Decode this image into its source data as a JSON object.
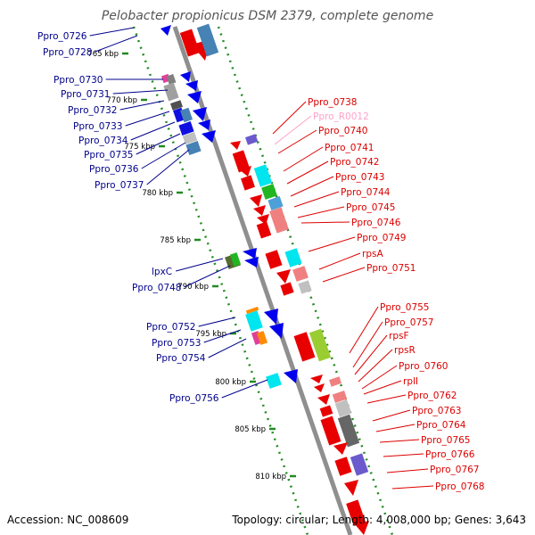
{
  "title": "Pelobacter propionicus DSM 2379, complete genome",
  "footer": {
    "accession": "Accession: NC_008609",
    "summary": "Topology: circular; Length: 4,008,000 bp; Genes: 3,643"
  },
  "colors": {
    "left_label": "#00008b",
    "right_label": "#dd0000",
    "rna_label": "#ff9fc8",
    "backbone": "#909090",
    "scale": "#228b22"
  },
  "ticks": [
    "765 kbp",
    "770 kbp",
    "775 kbp",
    "780 kbp",
    "785 kbp",
    "790 kbp",
    "795 kbp",
    "800 kbp",
    "805 kbp",
    "810 kbp"
  ],
  "left_labels": [
    "Ppro_0726",
    "Ppro_0728",
    "Ppro_0730",
    "Ppro_0731",
    "Ppro_0732",
    "Ppro_0733",
    "Ppro_0734",
    "Ppro_0735",
    "Ppro_0736",
    "Ppro_0737",
    "lpxC",
    "Ppro_0748",
    "Ppro_0752",
    "Ppro_0753",
    "Ppro_0754",
    "Ppro_0756"
  ],
  "right_labels": [
    "Ppro_0738",
    "Ppro_R0012",
    "Ppro_0740",
    "Ppro_0741",
    "Ppro_0742",
    "Ppro_0743",
    "Ppro_0744",
    "Ppro_0745",
    "Ppro_0746",
    "Ppro_0749",
    "rpsA",
    "Ppro_0751",
    "Ppro_0755",
    "Ppro_0757",
    "rpsF",
    "rpsR",
    "Ppro_0760",
    "rplI",
    "Ppro_0762",
    "Ppro_0763",
    "Ppro_0764",
    "Ppro_0765",
    "Ppro_0766",
    "Ppro_0767",
    "Ppro_0768"
  ]
}
